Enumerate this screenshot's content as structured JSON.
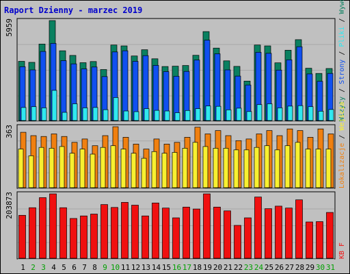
{
  "title": "Raport Dzienny -  marzec 2019",
  "colors": {
    "background": "#c0c0c0",
    "panel": "#c0c0c0",
    "grid": "#a8a8a8",
    "title": "#0000cc",
    "wizyty_series": "#0a8060",
    "strony_series": "#1050f0",
    "pliki_series": "#30e8f0",
    "lokalizacje_series": "#f08010",
    "wejscia_series": "#f8f030",
    "kb_series": "#f01010",
    "weekday_label": "#006000",
    "weekend_label": "#00a000"
  },
  "chart_data": [
    {
      "type": "bar",
      "panel": "top",
      "ymax_label": "5959",
      "ymax": 5959,
      "categories": [
        "1",
        "2",
        "3",
        "4",
        "5",
        "6",
        "7",
        "8",
        "9",
        "10",
        "11",
        "12",
        "13",
        "14",
        "15",
        "16",
        "17",
        "18",
        "19",
        "20",
        "21",
        "22",
        "23",
        "24",
        "25",
        "26",
        "27",
        "28",
        "29",
        "30",
        "31"
      ],
      "weekend_days": [
        "2",
        "3",
        "9",
        "10",
        "16",
        "17",
        "23",
        "24",
        "30",
        "31"
      ],
      "series": [
        {
          "name": "Wizyty",
          "color": "#0a8060",
          "values": [
            3530,
            3470,
            4560,
            5959,
            4160,
            3880,
            3450,
            3520,
            3040,
            4500,
            4450,
            3850,
            4220,
            3680,
            3220,
            3240,
            3280,
            3890,
            5300,
            4320,
            3560,
            3230,
            2350,
            4500,
            4450,
            3440,
            4190,
            4820,
            3120,
            2810,
            3100
          ]
        },
        {
          "name": "Strony",
          "color": "#1050f0",
          "values": [
            3210,
            3020,
            4120,
            4600,
            3570,
            3380,
            3080,
            3190,
            2620,
            4090,
            4160,
            3530,
            3870,
            3290,
            2920,
            2640,
            2930,
            3610,
            4790,
            3980,
            3020,
            2650,
            2120,
            4070,
            4010,
            3010,
            3620,
            4400,
            2780,
            2340,
            2810
          ]
        },
        {
          "name": "Pliki",
          "color": "#30e8f0",
          "values": [
            780,
            830,
            760,
            1800,
            490,
            1000,
            760,
            780,
            650,
            1370,
            570,
            530,
            710,
            610,
            570,
            470,
            600,
            710,
            870,
            850,
            640,
            740,
            540,
            950,
            1000,
            760,
            860,
            890,
            830,
            560,
            660
          ]
        }
      ]
    },
    {
      "type": "bar",
      "panel": "middle",
      "ymax_label": "363",
      "ymax": 363,
      "series": [
        {
          "name": "Lokalizacje",
          "color": "#f08010",
          "values": [
            330,
            310,
            305,
            320,
            305,
            270,
            290,
            250,
            310,
            363,
            300,
            260,
            230,
            290,
            260,
            270,
            300,
            360,
            320,
            340,
            310,
            280,
            290,
            320,
            340,
            310,
            350,
            340,
            300,
            350,
            320
          ]
        },
        {
          "name": "Wejścia",
          "color": "#f8f030",
          "values": [
            230,
            190,
            240,
            235,
            245,
            205,
            230,
            200,
            240,
            250,
            230,
            205,
            175,
            215,
            205,
            210,
            235,
            270,
            245,
            235,
            235,
            225,
            225,
            240,
            250,
            225,
            250,
            270,
            230,
            230,
            230
          ]
        }
      ]
    },
    {
      "type": "bar",
      "panel": "bottom",
      "ymax_label": "203873",
      "ymax": 203873,
      "series": [
        {
          "name": "KB F",
          "color": "#f01010",
          "values": [
            136000,
            160000,
            192000,
            203873,
            160000,
            126000,
            134000,
            140000,
            170000,
            161000,
            177000,
            168000,
            134000,
            175000,
            159000,
            128000,
            162000,
            156000,
            203873,
            162000,
            150000,
            104000,
            128000,
            194000,
            157000,
            165000,
            159000,
            185000,
            115000,
            116000,
            145000
          ]
        }
      ]
    }
  ],
  "right_labels": {
    "top": [
      {
        "text": "Wizyty",
        "color": "#0a8060"
      },
      {
        "text": "Strony",
        "color": "#1050f0"
      },
      {
        "text": "Pliki",
        "color": "#30e8f0"
      },
      {
        "text": "Wywołania",
        "color": "#0a8060"
      }
    ],
    "middle": [
      {
        "text": "Lokalizacje",
        "color": "#f08010"
      },
      {
        "text": "Wejścia",
        "color": "#f8f030"
      }
    ],
    "bottom": [
      {
        "text": "KB F",
        "color": "#f01010"
      }
    ]
  },
  "right_label_separator": " / "
}
